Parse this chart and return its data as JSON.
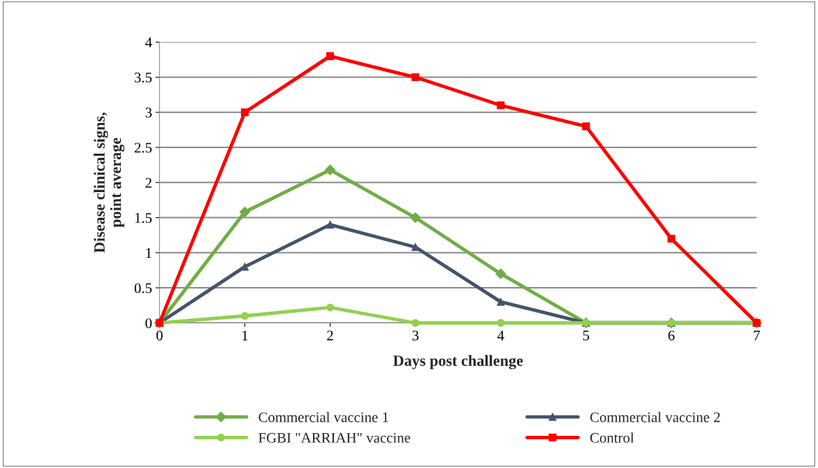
{
  "chart_data": {
    "type": "line",
    "xlabel": "Days post challenge",
    "ylabel": "Disease clinical signs,\npoint average",
    "x": [
      0,
      1,
      2,
      3,
      4,
      5,
      6,
      7
    ],
    "xlim": [
      0,
      7
    ],
    "xticks": [
      0,
      1,
      2,
      3,
      4,
      5,
      6,
      7
    ],
    "ylim": [
      0,
      4
    ],
    "yticks": [
      0,
      0.5,
      1,
      1.5,
      2,
      2.5,
      3,
      3.5,
      4
    ],
    "grid": "y",
    "legend": "bottom",
    "series": [
      {
        "name": "Commercial vaccine 1",
        "color": "#70ad47",
        "marker": "diamond",
        "values": [
          0,
          1.58,
          2.18,
          1.5,
          0.7,
          0,
          0,
          0
        ]
      },
      {
        "name": "Commercial vaccine 2",
        "color": "#44546a",
        "marker": "triangle",
        "values": [
          0,
          0.8,
          1.4,
          1.08,
          0.3,
          0,
          0,
          0
        ]
      },
      {
        "name": "FGBI \"ARRIAH\" vaccine",
        "color": "#92d050",
        "marker": "circle",
        "values": [
          0,
          0.1,
          0.22,
          0,
          0,
          0,
          0,
          0
        ]
      },
      {
        "name": "Control",
        "color": "#ff0000",
        "marker": "square",
        "values": [
          0,
          3.0,
          3.8,
          3.5,
          3.1,
          2.8,
          1.2,
          0
        ]
      }
    ]
  }
}
